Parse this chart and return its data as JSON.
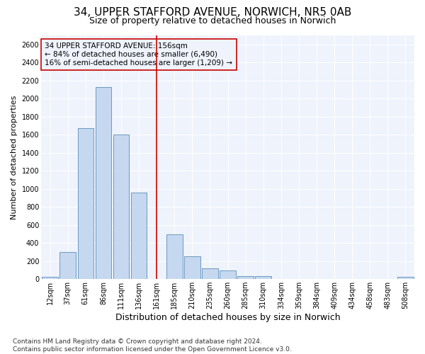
{
  "title": "34, UPPER STAFFORD AVENUE, NORWICH, NR5 0AB",
  "subtitle": "Size of property relative to detached houses in Norwich",
  "xlabel": "Distribution of detached houses by size in Norwich",
  "ylabel": "Number of detached properties",
  "footer_line1": "Contains HM Land Registry data © Crown copyright and database right 2024.",
  "footer_line2": "Contains public sector information licensed under the Open Government Licence v3.0.",
  "annotation_line1": "34 UPPER STAFFORD AVENUE: 156sqm",
  "annotation_line2": "← 84% of detached houses are smaller (6,490)",
  "annotation_line3": "16% of semi-detached houses are larger (1,209) →",
  "bar_categories": [
    "12sqm",
    "37sqm",
    "61sqm",
    "86sqm",
    "111sqm",
    "136sqm",
    "161sqm",
    "185sqm",
    "210sqm",
    "235sqm",
    "260sqm",
    "285sqm",
    "310sqm",
    "334sqm",
    "359sqm",
    "384sqm",
    "409sqm",
    "434sqm",
    "458sqm",
    "483sqm",
    "508sqm"
  ],
  "bar_values": [
    22,
    300,
    1670,
    2130,
    1600,
    960,
    0,
    500,
    250,
    120,
    100,
    30,
    30,
    0,
    0,
    0,
    0,
    0,
    0,
    0,
    22
  ],
  "bar_color": "#c5d8f0",
  "bar_edge_color": "#5b8db8",
  "vline_color": "#cc0000",
  "vline_x_idx": 6,
  "ylim_max": 2700,
  "ytick_step": 200,
  "bg_color": "#ffffff",
  "plot_bg_color": "#eef3fc",
  "grid_color": "#ffffff",
  "title_fontsize": 11,
  "subtitle_fontsize": 9,
  "ylabel_fontsize": 8,
  "xlabel_fontsize": 9,
  "tick_fontsize": 7,
  "annotation_fontsize": 7.5,
  "footer_fontsize": 6.5
}
